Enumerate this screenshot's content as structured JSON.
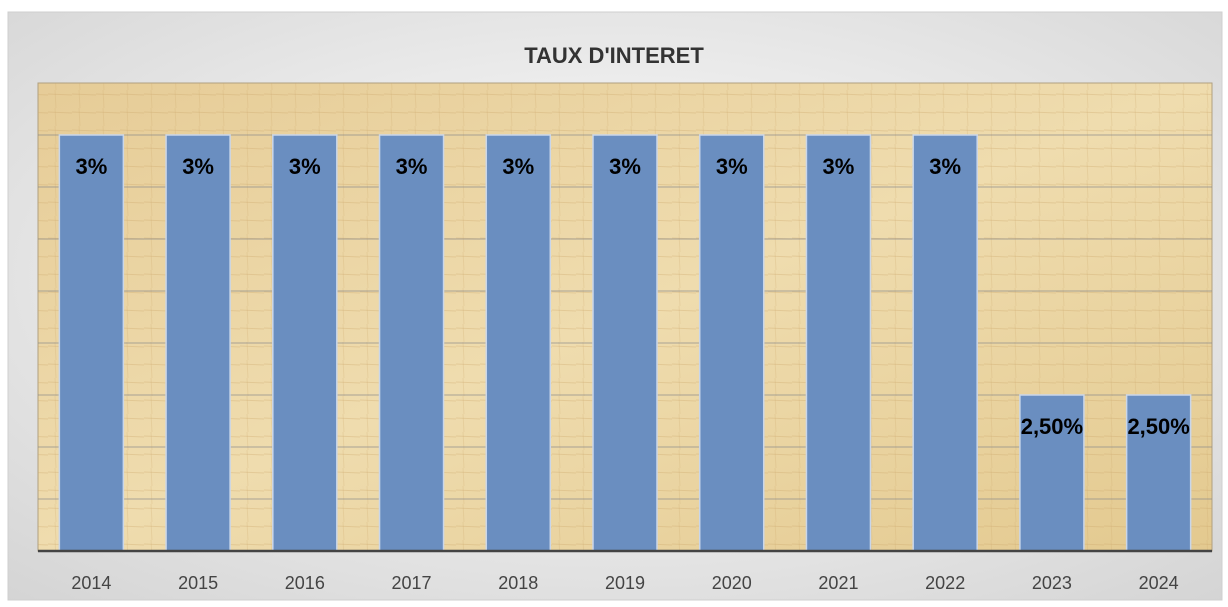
{
  "chart_data": {
    "type": "bar",
    "title": "TAUX D'INTERET",
    "categories": [
      "2014",
      "2015",
      "2016",
      "2017",
      "2018",
      "2019",
      "2020",
      "2021",
      "2022",
      "2023",
      "2024"
    ],
    "values": [
      3,
      3,
      3,
      3,
      3,
      3,
      3,
      3,
      3,
      2.5,
      2.5
    ],
    "value_labels": [
      "3%",
      "3%",
      "3%",
      "3%",
      "3%",
      "3%",
      "3%",
      "3%",
      "3%",
      "2,50%",
      "2,50%"
    ],
    "color": "#6a8ec0",
    "ylim": [
      2.2,
      3.1
    ],
    "yticks": [
      2.3,
      2.4,
      2.5,
      2.6,
      2.7,
      2.8,
      2.9,
      3.0
    ],
    "grid": true
  }
}
